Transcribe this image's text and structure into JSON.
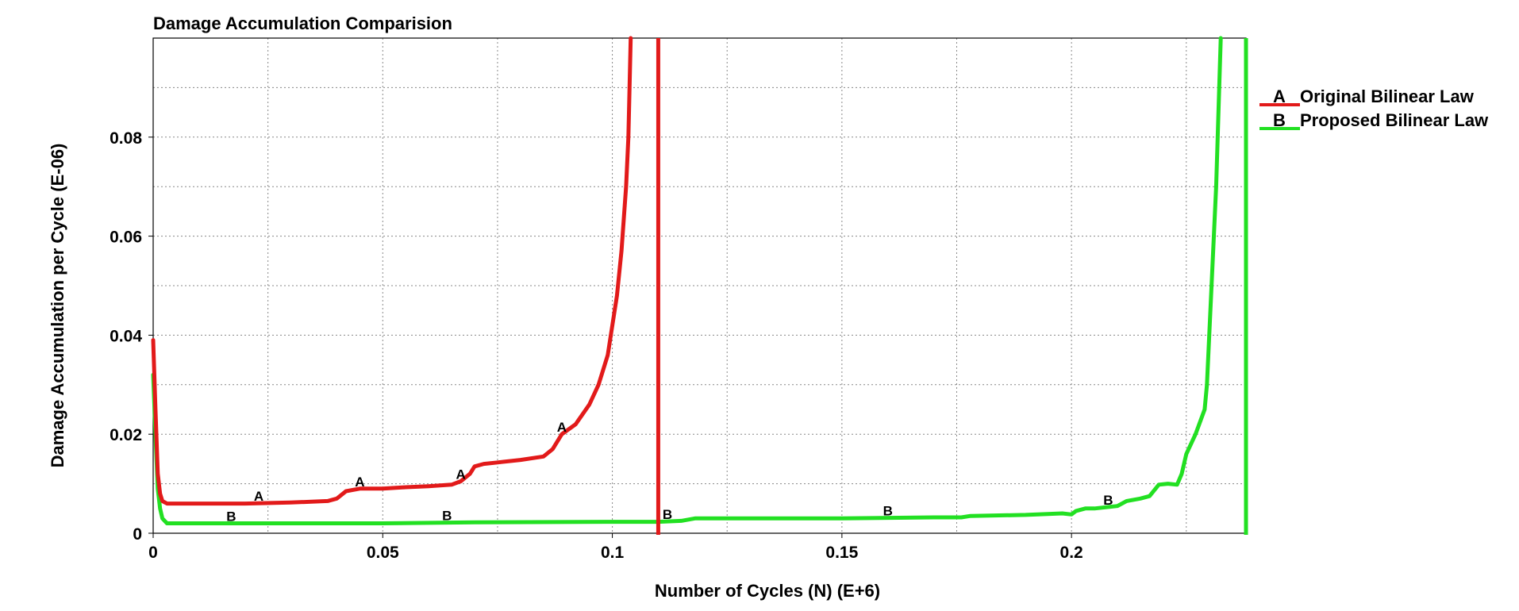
{
  "chart_data": {
    "type": "line",
    "title": "Damage Accumulation Comparision",
    "xlabel": "Number of Cycles (N) (E+6)",
    "ylabel": "Damage Accumulation per Cycle (E-06)",
    "xlim": [
      0,
      0.238
    ],
    "ylim": [
      0,
      0.1
    ],
    "x_ticks": [
      0,
      0.05,
      0.1,
      0.15,
      0.2
    ],
    "x_tick_labels": [
      "0",
      "0.05",
      "0.1",
      "0.15",
      "0.2"
    ],
    "y_ticks": [
      0,
      0.02,
      0.04,
      0.06,
      0.08
    ],
    "y_tick_labels": [
      "0",
      "0.02",
      "0.04",
      "0.06",
      "0.08"
    ],
    "grid": true,
    "legend_position": "right",
    "series": [
      {
        "name": "Original Bilinear Law",
        "marker": "A",
        "color": "#e21a1a",
        "failure_x": 0.11,
        "x": [
          0,
          0.0005,
          0.001,
          0.0015,
          0.002,
          0.003,
          0.005,
          0.01,
          0.02,
          0.03,
          0.038,
          0.04,
          0.042,
          0.045,
          0.05,
          0.055,
          0.06,
          0.065,
          0.067,
          0.069,
          0.07,
          0.072,
          0.075,
          0.08,
          0.085,
          0.087,
          0.089,
          0.092,
          0.095,
          0.097,
          0.099,
          0.1,
          0.101,
          0.102,
          0.103,
          0.1035,
          0.104
        ],
        "y": [
          0.039,
          0.025,
          0.012,
          0.008,
          0.0065,
          0.006,
          0.006,
          0.006,
          0.006,
          0.0062,
          0.0065,
          0.007,
          0.0085,
          0.009,
          0.009,
          0.0093,
          0.0095,
          0.0098,
          0.0105,
          0.012,
          0.0135,
          0.014,
          0.0143,
          0.0148,
          0.0155,
          0.017,
          0.02,
          0.022,
          0.026,
          0.03,
          0.036,
          0.042,
          0.048,
          0.057,
          0.07,
          0.08,
          0.1
        ],
        "marker_x": [
          0.023,
          0.045,
          0.067,
          0.089
        ]
      },
      {
        "name": "Proposed Bilinear Law",
        "marker": "B",
        "color": "#22e022",
        "failure_x": 0.238,
        "x": [
          0,
          0.0005,
          0.001,
          0.0015,
          0.002,
          0.003,
          0.005,
          0.02,
          0.05,
          0.07,
          0.1,
          0.11,
          0.115,
          0.118,
          0.12,
          0.15,
          0.17,
          0.176,
          0.178,
          0.19,
          0.198,
          0.2,
          0.201,
          0.203,
          0.205,
          0.21,
          0.212,
          0.215,
          0.217,
          0.219,
          0.221,
          0.223,
          0.224,
          0.225,
          0.227,
          0.229,
          0.2295,
          0.23,
          0.2305,
          0.231,
          0.2315,
          0.232,
          0.2325
        ],
        "y": [
          0.032,
          0.02,
          0.009,
          0.005,
          0.003,
          0.002,
          0.002,
          0.002,
          0.002,
          0.0022,
          0.0023,
          0.0023,
          0.0025,
          0.003,
          0.003,
          0.003,
          0.0032,
          0.0032,
          0.0035,
          0.0037,
          0.004,
          0.0038,
          0.0045,
          0.005,
          0.005,
          0.0055,
          0.0065,
          0.007,
          0.0075,
          0.0098,
          0.01,
          0.0098,
          0.012,
          0.016,
          0.02,
          0.025,
          0.03,
          0.04,
          0.05,
          0.06,
          0.07,
          0.085,
          0.1
        ],
        "marker_x": [
          0.017,
          0.064,
          0.112,
          0.16,
          0.208
        ]
      }
    ]
  }
}
